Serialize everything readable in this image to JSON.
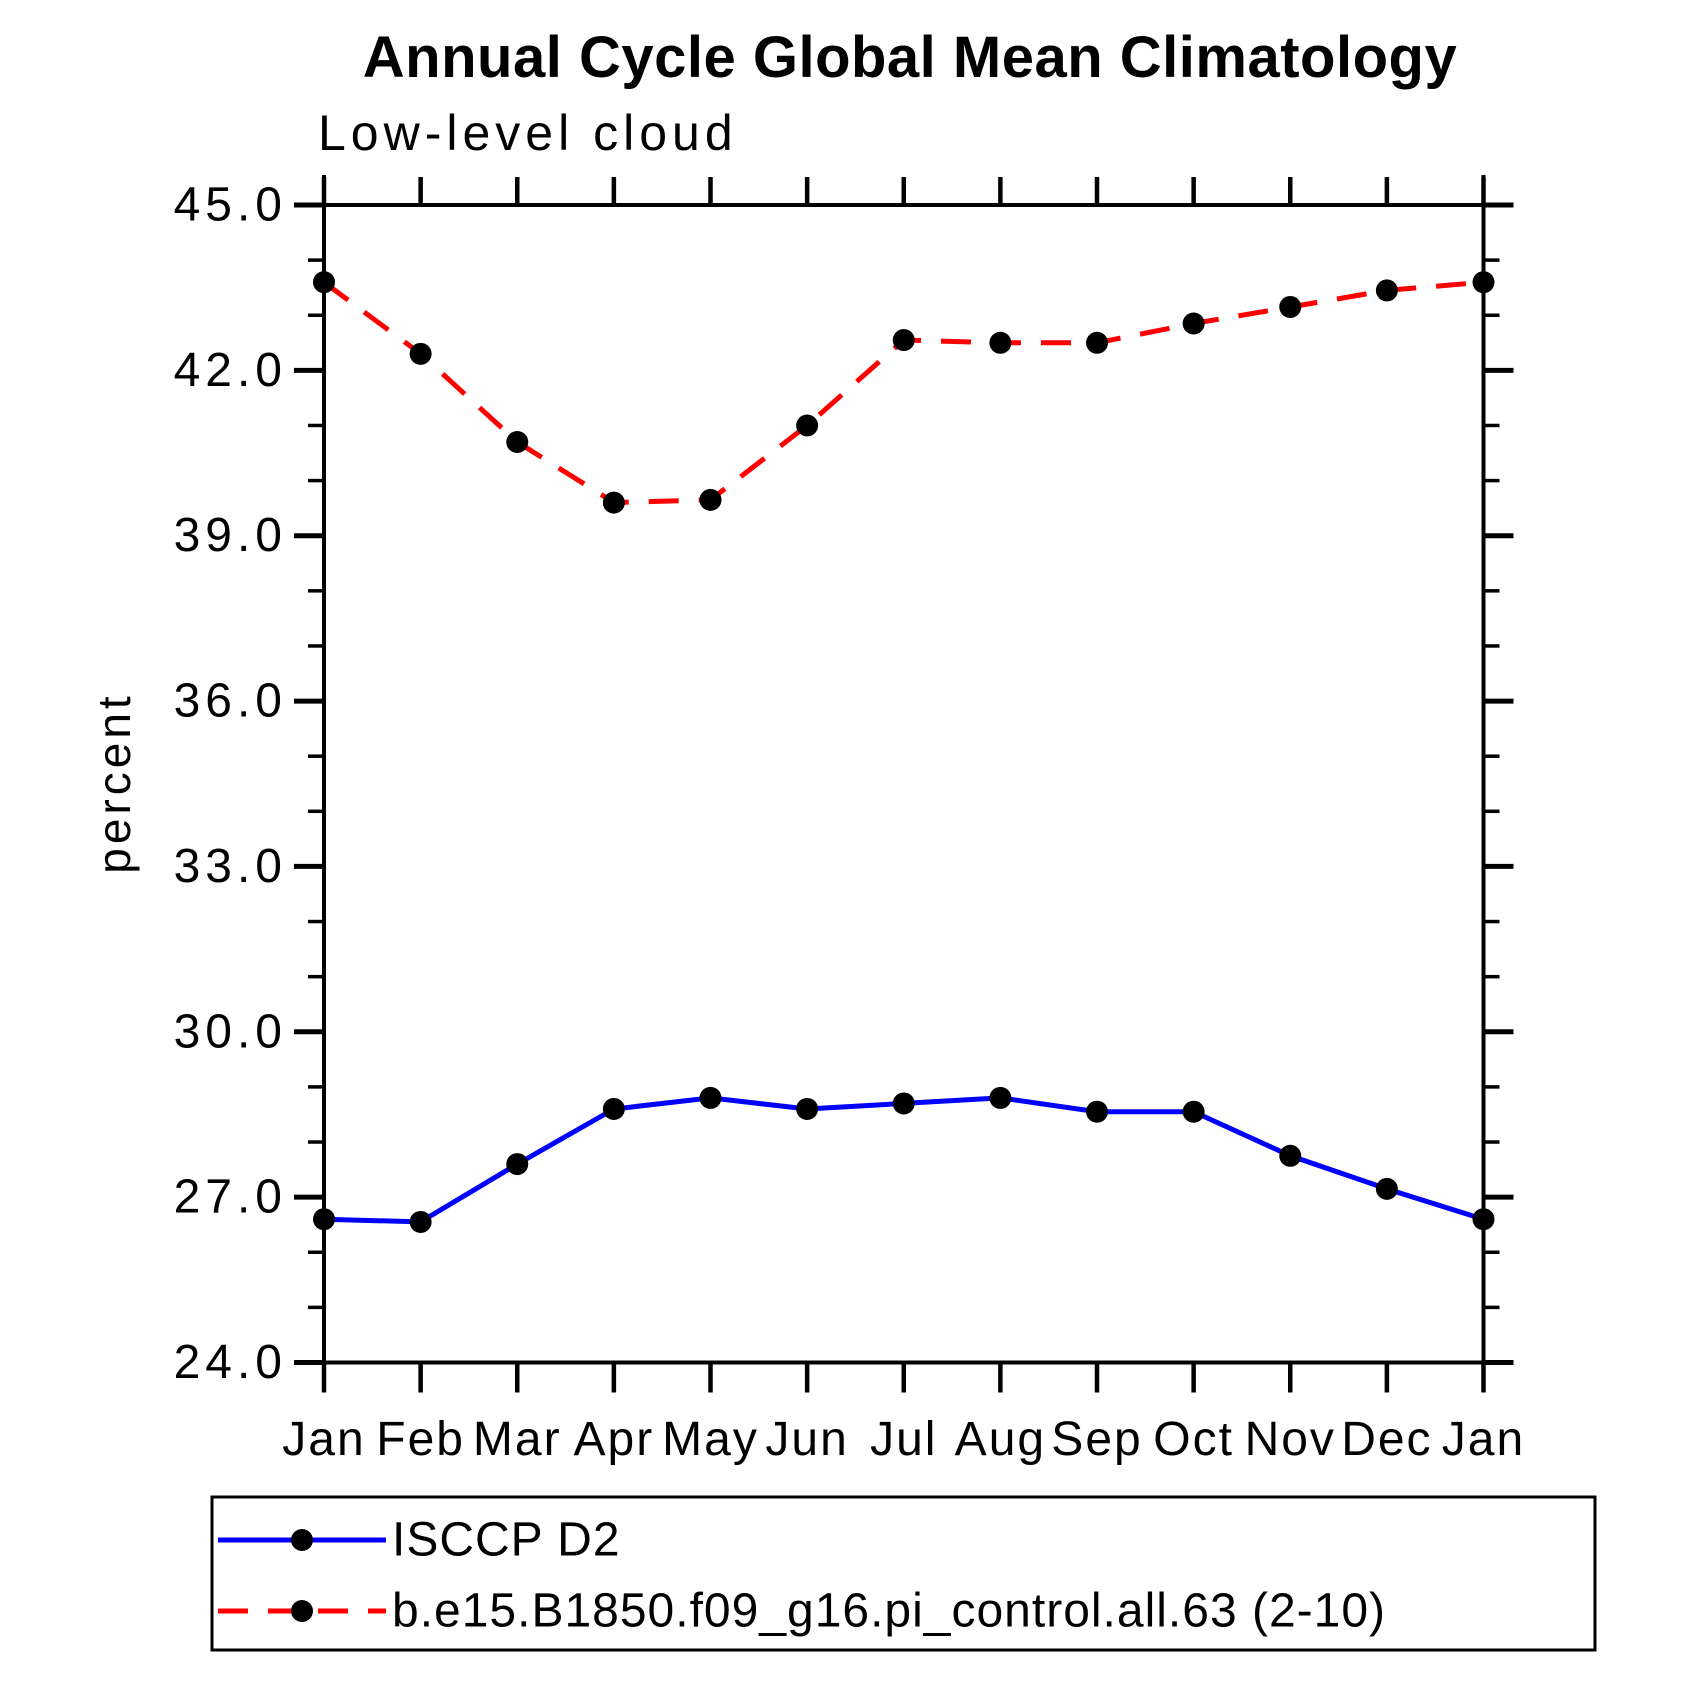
{
  "title": "Annual Cycle Global Mean Climatology",
  "subtitle": "Low-level cloud",
  "ylabel": "percent",
  "legend": {
    "position": "bottom-left-box",
    "items": [
      {
        "label": "ISCCP D2",
        "color": "#0000ff",
        "line_style": "solid",
        "marker": "black-dot"
      },
      {
        "label": "b.e15.B1850.f09_g16.pi_control.all.63 (2-10)",
        "color": "#ff0000",
        "line_style": "dashed",
        "marker": "black-dot"
      }
    ]
  },
  "chart_data": {
    "type": "line",
    "title": "Annual Cycle Global Mean Climatology",
    "subtitle": "Low-level cloud",
    "xlabel": "",
    "ylabel": "percent",
    "x_categories": [
      "Jan",
      "Feb",
      "Mar",
      "Apr",
      "May",
      "Jun",
      "Jul",
      "Aug",
      "Sep",
      "Oct",
      "Nov",
      "Dec",
      "Jan"
    ],
    "series": [
      {
        "name": "ISCCP D2",
        "color": "#0000ff",
        "line_style": "solid",
        "marker": "filled-black-circle",
        "values": [
          26.6,
          26.55,
          27.6,
          28.6,
          28.8,
          28.6,
          28.7,
          28.8,
          28.55,
          28.55,
          27.75,
          27.15,
          26.6
        ]
      },
      {
        "name": "b.e15.B1850.f09_g16.pi_control.all.63 (2-10)",
        "color": "#ff0000",
        "line_style": "dashed",
        "marker": "filled-black-circle",
        "values": [
          43.6,
          42.3,
          40.7,
          39.6,
          39.65,
          41.0,
          42.55,
          42.5,
          42.5,
          42.85,
          43.15,
          43.45,
          43.6
        ]
      }
    ],
    "ylim": [
      24.0,
      45.0
    ],
    "ytick_major": [
      24.0,
      27.0,
      30.0,
      33.0,
      36.0,
      39.0,
      42.0,
      45.0
    ],
    "ytick_minor_step": 1.0,
    "ytick_label_format": "one-decimal",
    "grid": false,
    "frame": "boxed-with-outward-ticks",
    "legend_position": "bottom-left-box",
    "marker_color": "#000000"
  }
}
